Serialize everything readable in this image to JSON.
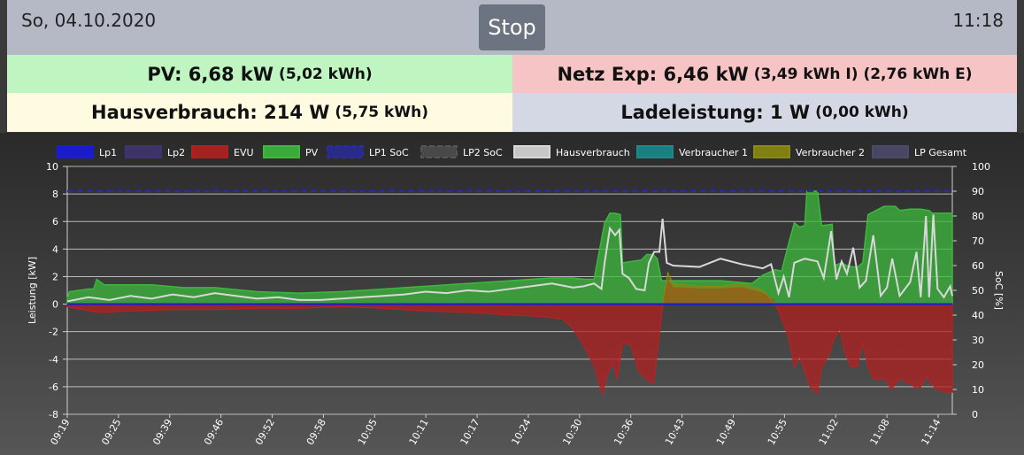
{
  "header": {
    "date": "So, 04.10.2020",
    "time": "11:18",
    "stop_label": "Stop"
  },
  "tiles": {
    "pv": {
      "main": "PV: 6,68 kW",
      "sub": "(5,02 kWh)"
    },
    "netz": {
      "main": "Netz Exp: 6,46 kW",
      "sub": "(3,49 kWh I) (2,76 kWh E)"
    },
    "haus": {
      "main": "Hausverbrauch: 214 W",
      "sub": "(5,75 kWh)"
    },
    "lade": {
      "main": "Ladeleistung: 1 W",
      "sub": "(0,00 kWh)"
    }
  },
  "colors": {
    "lp1": "#1a1adc",
    "lp2": "#3f3470",
    "evu": "#b02020",
    "pv": "#3cb83c",
    "lp1_soc": "#2a2ab0",
    "lp2_soc": "#555555",
    "hausverbrauch": "#d8d8d8",
    "verbraucher1": "#1a8a8a",
    "verbraucher2": "#8a8a10",
    "lp_gesamt": "#4a4a6a"
  },
  "chart_data": {
    "type": "area",
    "ylabel": "Leistung [kW]",
    "y2label": "SoC [%]",
    "ylim": [
      -8,
      10
    ],
    "y2lim": [
      0,
      100
    ],
    "yticks": [
      10,
      8,
      6,
      4,
      2,
      0,
      -2,
      -4,
      -6,
      -8
    ],
    "y2ticks": [
      100,
      90,
      80,
      70,
      60,
      50,
      40,
      30,
      20,
      10,
      0
    ],
    "grid": true,
    "legend_position": "top",
    "x_tick_labels": [
      "09:19",
      "09:25",
      "09:39",
      "09:46",
      "09:52",
      "09:58",
      "10:05",
      "10:11",
      "10:17",
      "10:24",
      "10:30",
      "10:36",
      "10:43",
      "10:49",
      "10:55",
      "11:02",
      "11:08",
      "11:14"
    ],
    "legend": [
      "Lp1",
      "Lp2",
      "EVU",
      "PV",
      "LP1 SoC",
      "LP2 SoC",
      "Hausverbrauch",
      "Verbraucher 1",
      "Verbraucher 2",
      "LP Gesamt"
    ],
    "series": [
      {
        "name": "PV",
        "points": [
          [
            0,
            0.4
          ],
          [
            2,
            0.9
          ],
          [
            20,
            1.1
          ],
          [
            25,
            1.1
          ],
          [
            28,
            1.8
          ],
          [
            35,
            1.4
          ],
          [
            50,
            1.4
          ],
          [
            80,
            1.4
          ],
          [
            110,
            1.2
          ],
          [
            140,
            1.2
          ],
          [
            180,
            0.9
          ],
          [
            220,
            0.8
          ],
          [
            260,
            0.9
          ],
          [
            300,
            1.1
          ],
          [
            340,
            1.3
          ],
          [
            380,
            1.5
          ],
          [
            420,
            1.7
          ],
          [
            440,
            1.8
          ],
          [
            460,
            1.9
          ],
          [
            480,
            1.9
          ],
          [
            490,
            1.8
          ],
          [
            500,
            1.8
          ],
          [
            510,
            5.9
          ],
          [
            515,
            6.6
          ],
          [
            520,
            6.6
          ],
          [
            525,
            6.5
          ],
          [
            527,
            3.0
          ],
          [
            545,
            3.2
          ],
          [
            550,
            3.6
          ],
          [
            556,
            3.6
          ],
          [
            560,
            3.3
          ],
          [
            564,
            1.7
          ],
          [
            620,
            1.7
          ],
          [
            650,
            1.5
          ],
          [
            660,
            2.1
          ],
          [
            672,
            2.5
          ],
          [
            678,
            2.4
          ],
          [
            684,
            4.2
          ],
          [
            690,
            5.9
          ],
          [
            695,
            5.6
          ],
          [
            700,
            5.7
          ],
          [
            702,
            8.2
          ],
          [
            712,
            8.2
          ],
          [
            716,
            5.7
          ],
          [
            726,
            5.8
          ],
          [
            728,
            2.8
          ],
          [
            735,
            3.0
          ],
          [
            740,
            2.8
          ],
          [
            746,
            2.7
          ],
          [
            750,
            2.7
          ],
          [
            755,
            3.0
          ],
          [
            760,
            6.5
          ],
          [
            775,
            7.1
          ],
          [
            786,
            7.1
          ],
          [
            790,
            6.8
          ],
          [
            800,
            6.9
          ],
          [
            810,
            6.9
          ],
          [
            818,
            6.8
          ],
          [
            821,
            6.6
          ],
          [
            840,
            6.6
          ]
        ]
      },
      {
        "name": "EVU",
        "points": [
          [
            0,
            -0.2
          ],
          [
            30,
            -0.6
          ],
          [
            60,
            -0.5
          ],
          [
            100,
            -0.4
          ],
          [
            140,
            -0.4
          ],
          [
            180,
            -0.3
          ],
          [
            220,
            -0.3
          ],
          [
            260,
            -0.2
          ],
          [
            300,
            -0.3
          ],
          [
            340,
            -0.5
          ],
          [
            380,
            -0.6
          ],
          [
            420,
            -0.8
          ],
          [
            450,
            -0.9
          ],
          [
            470,
            -1.1
          ],
          [
            480,
            -1.8
          ],
          [
            490,
            -3.0
          ],
          [
            500,
            -4.5
          ],
          [
            505,
            -5.8
          ],
          [
            508,
            -6.6
          ],
          [
            512,
            -5.2
          ],
          [
            518,
            -4.2
          ],
          [
            522,
            -5.5
          ],
          [
            527,
            -2.8
          ],
          [
            535,
            -3.0
          ],
          [
            542,
            -4.8
          ],
          [
            550,
            -5.5
          ],
          [
            556,
            -5.8
          ],
          [
            560,
            -3.5
          ],
          [
            565,
            -0.2
          ],
          [
            570,
            1.7
          ],
          [
            575,
            1.2
          ],
          [
            600,
            1.1
          ],
          [
            620,
            1.1
          ],
          [
            640,
            1.2
          ],
          [
            660,
            0.8
          ],
          [
            670,
            0.3
          ],
          [
            675,
            -0.5
          ],
          [
            685,
            -2.5
          ],
          [
            690,
            -4.6
          ],
          [
            695,
            -3.8
          ],
          [
            705,
            -6.0
          ],
          [
            712,
            -6.5
          ],
          [
            716,
            -4.6
          ],
          [
            722,
            -3.8
          ],
          [
            728,
            -2.5
          ],
          [
            733,
            -1.8
          ],
          [
            738,
            -3.5
          ],
          [
            744,
            -4.6
          ],
          [
            750,
            -4.5
          ],
          [
            755,
            -2.8
          ],
          [
            760,
            -4.6
          ],
          [
            765,
            -5.4
          ],
          [
            770,
            -5.5
          ],
          [
            776,
            -5.4
          ],
          [
            782,
            -6.2
          ],
          [
            790,
            -5.4
          ],
          [
            800,
            -5.8
          ],
          [
            806,
            -6.1
          ],
          [
            810,
            -6.0
          ],
          [
            816,
            -5.2
          ],
          [
            820,
            -5.8
          ],
          [
            826,
            -6.2
          ],
          [
            834,
            -6.4
          ],
          [
            840,
            -6.4
          ]
        ]
      },
      {
        "name": "Hausverbrauch",
        "points": [
          [
            0,
            0.2
          ],
          [
            20,
            0.5
          ],
          [
            40,
            0.3
          ],
          [
            60,
            0.6
          ],
          [
            80,
            0.4
          ],
          [
            100,
            0.7
          ],
          [
            120,
            0.5
          ],
          [
            140,
            0.8
          ],
          [
            160,
            0.6
          ],
          [
            180,
            0.4
          ],
          [
            200,
            0.5
          ],
          [
            220,
            0.3
          ],
          [
            240,
            0.3
          ],
          [
            260,
            0.4
          ],
          [
            280,
            0.5
          ],
          [
            300,
            0.6
          ],
          [
            320,
            0.7
          ],
          [
            340,
            0.9
          ],
          [
            360,
            0.8
          ],
          [
            380,
            1.0
          ],
          [
            400,
            0.9
          ],
          [
            420,
            1.1
          ],
          [
            440,
            1.3
          ],
          [
            460,
            1.5
          ],
          [
            480,
            1.2
          ],
          [
            490,
            1.3
          ],
          [
            500,
            1.5
          ],
          [
            507,
            1.1
          ],
          [
            510,
            3.0
          ],
          [
            515,
            5.5
          ],
          [
            520,
            5.0
          ],
          [
            524,
            5.4
          ],
          [
            527,
            2.2
          ],
          [
            533,
            1.9
          ],
          [
            540,
            1.1
          ],
          [
            548,
            1.0
          ],
          [
            552,
            3.0
          ],
          [
            557,
            3.8
          ],
          [
            562,
            3.8
          ],
          [
            565,
            6.2
          ],
          [
            569,
            3.0
          ],
          [
            575,
            2.8
          ],
          [
            600,
            2.7
          ],
          [
            620,
            3.3
          ],
          [
            640,
            2.9
          ],
          [
            660,
            2.6
          ],
          [
            668,
            2.9
          ],
          [
            675,
            0.8
          ],
          [
            680,
            2.0
          ],
          [
            685,
            0.5
          ],
          [
            690,
            3.0
          ],
          [
            700,
            3.3
          ],
          [
            712,
            3.1
          ],
          [
            718,
            1.9
          ],
          [
            725,
            5.3
          ],
          [
            730,
            1.8
          ],
          [
            735,
            3.1
          ],
          [
            740,
            2.2
          ],
          [
            746,
            4.1
          ],
          [
            752,
            1.2
          ],
          [
            758,
            1.7
          ],
          [
            765,
            5.0
          ],
          [
            772,
            0.6
          ],
          [
            778,
            1.2
          ],
          [
            783,
            3.3
          ],
          [
            790,
            0.6
          ],
          [
            800,
            1.6
          ],
          [
            806,
            3.8
          ],
          [
            810,
            0.5
          ],
          [
            815,
            6.4
          ],
          [
            818,
            0.5
          ],
          [
            822,
            6.5
          ],
          [
            826,
            1.1
          ],
          [
            832,
            0.5
          ],
          [
            838,
            1.3
          ],
          [
            840,
            0.6
          ]
        ]
      },
      {
        "name": "Verbraucher 2",
        "points": [
          [
            565,
            0.0
          ],
          [
            570,
            2.3
          ],
          [
            575,
            1.5
          ],
          [
            600,
            1.3
          ],
          [
            620,
            1.3
          ],
          [
            640,
            1.5
          ],
          [
            660,
            1.0
          ],
          [
            668,
            0.4
          ],
          [
            672,
            0.0
          ]
        ]
      },
      {
        "name": "Lp1",
        "points": [
          [
            0,
            0.0
          ],
          [
            840,
            0.0
          ]
        ]
      },
      {
        "name": "LP1 SoC",
        "axis": "right",
        "points": [
          [
            0,
            90
          ],
          [
            840,
            90
          ]
        ]
      }
    ]
  }
}
